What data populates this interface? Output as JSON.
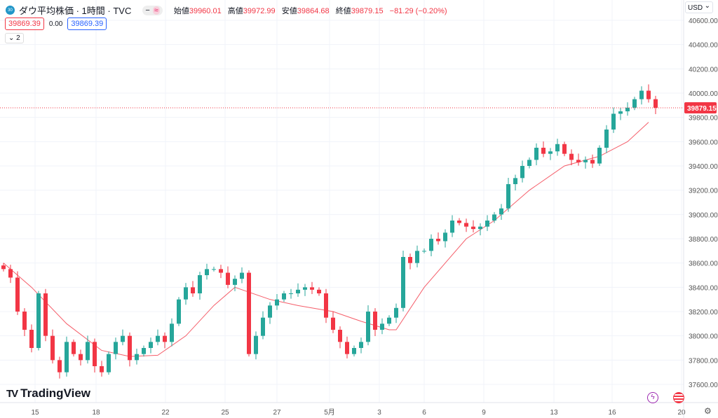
{
  "header": {
    "symbol_badge": "30",
    "title": "ダウ平均株価 · 1時間 · TVC",
    "toggle": [
      "−",
      "≈"
    ],
    "ohlc": [
      {
        "label": "始値",
        "value": "39960.01"
      },
      {
        "label": "高値",
        "value": "39972.99"
      },
      {
        "label": "安値",
        "value": "39864.68"
      },
      {
        "label": "終値",
        "value": "39879.15"
      }
    ],
    "change": "−81.29 (−0.20%)",
    "sell": "39869.39",
    "spread": "0.00",
    "buy": "39869.39",
    "indicators_collapse": "2"
  },
  "currency": "USD",
  "brand": "TradingView",
  "colors": {
    "up": "#26a69a",
    "down": "#f23645",
    "ma": "#f23645",
    "grid": "#f0f3fa"
  },
  "chart_data": {
    "type": "candlestick",
    "ylim": [
      37500,
      40700
    ],
    "yticks": [
      "40600.00",
      "40400.00",
      "40200.00",
      "40000.00",
      "39800.00",
      "39600.00",
      "39400.00",
      "39200.00",
      "39000.00",
      "38800.00",
      "38600.00",
      "38400.00",
      "38200.00",
      "38000.00",
      "37800.00",
      "37600.00"
    ],
    "first_open": 38580,
    "closes": [
      38550,
      38480,
      38200,
      38050,
      37900,
      38350,
      38000,
      37800,
      37700,
      37950,
      37850,
      37800,
      37950,
      37750,
      37700,
      37850,
      37950,
      38000,
      37800,
      37850,
      37900,
      37950,
      38000,
      37950,
      38100,
      38300,
      38400,
      38350,
      38500,
      38550,
      38550,
      38520,
      38420,
      38470,
      38520,
      37850,
      38000,
      38150,
      38250,
      38300,
      38350,
      38350,
      38380,
      38400,
      38380,
      38350,
      38150,
      38050,
      37950,
      37850,
      37900,
      37950,
      38200,
      38050,
      38100,
      38150,
      38230,
      38650,
      38600,
      38700,
      38700,
      38800,
      38780,
      38850,
      38950,
      38930,
      38900,
      38880,
      38900,
      38950,
      39000,
      39050,
      39250,
      39300,
      39400,
      39450,
      39550,
      39500,
      39520,
      39580,
      39500,
      39450,
      39430,
      39450,
      39420,
      39550,
      39700,
      39830,
      39850,
      39880,
      39950,
      40020,
      39950,
      39879.15
    ],
    "wick": 40,
    "ma": [
      [
        0,
        38600
      ],
      [
        4,
        38400
      ],
      [
        9,
        38100
      ],
      [
        14,
        37880
      ],
      [
        18,
        37830
      ],
      [
        22,
        37840
      ],
      [
        26,
        38000
      ],
      [
        30,
        38250
      ],
      [
        33,
        38400
      ],
      [
        38,
        38300
      ],
      [
        42,
        38250
      ],
      [
        47,
        38200
      ],
      [
        51,
        38120
      ],
      [
        55,
        38050
      ],
      [
        56,
        38050
      ],
      [
        60,
        38400
      ],
      [
        66,
        38800
      ],
      [
        70,
        38950
      ],
      [
        75,
        39200
      ],
      [
        80,
        39400
      ],
      [
        85,
        39480
      ],
      [
        89,
        39600
      ],
      [
        92,
        39760
      ]
    ],
    "last_price": "39879.15",
    "xticks": [
      {
        "label": "15",
        "i": 4.5
      },
      {
        "label": "18",
        "i": 13.2
      },
      {
        "label": "22",
        "i": 23.1
      },
      {
        "label": "25",
        "i": 31.6
      },
      {
        "label": "27",
        "i": 39
      },
      {
        "label": "5月",
        "i": 46.5
      },
      {
        "label": "3",
        "i": 53.6
      },
      {
        "label": "6",
        "i": 60
      },
      {
        "label": "9",
        "i": 68.5
      },
      {
        "label": "13",
        "i": 78.5
      },
      {
        "label": "16",
        "i": 86.8
      },
      {
        "label": "20",
        "i": 96.7
      }
    ]
  }
}
